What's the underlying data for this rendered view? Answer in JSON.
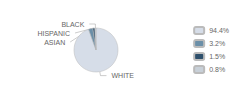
{
  "chart_data": {
    "type": "pie",
    "categories": [
      "WHITE",
      "ASIAN",
      "HISPANIC",
      "BLACK"
    ],
    "values": [
      94.4,
      3.2,
      1.5,
      0.8
    ],
    "value_labels": [
      "94.4%",
      "3.2%",
      "1.5%",
      "0.8%"
    ],
    "colors": [
      "#d6dde8",
      "#6b8fa8",
      "#2d4f6b",
      "#c8d0d8"
    ],
    "legend": "right"
  }
}
